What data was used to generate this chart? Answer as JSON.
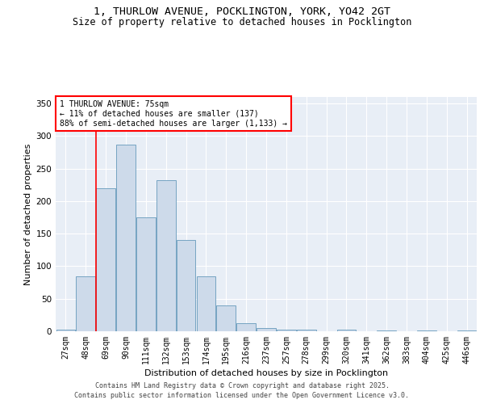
{
  "title_line1": "1, THURLOW AVENUE, POCKLINGTON, YORK, YO42 2GT",
  "title_line2": "Size of property relative to detached houses in Pocklington",
  "xlabel": "Distribution of detached houses by size in Pocklington",
  "ylabel": "Number of detached properties",
  "bar_color": "#cddaea",
  "bar_edge_color": "#6699bb",
  "background_color": "#e8eef6",
  "categories": [
    "27sqm",
    "48sqm",
    "69sqm",
    "90sqm",
    "111sqm",
    "132sqm",
    "153sqm",
    "174sqm",
    "195sqm",
    "216sqm",
    "237sqm",
    "257sqm",
    "278sqm",
    "299sqm",
    "320sqm",
    "341sqm",
    "362sqm",
    "383sqm",
    "404sqm",
    "425sqm",
    "446sqm"
  ],
  "values": [
    2,
    85,
    220,
    287,
    175,
    232,
    140,
    85,
    40,
    12,
    5,
    3,
    2,
    0,
    2,
    0,
    1,
    0,
    1,
    0,
    1
  ],
  "ylim": [
    0,
    360
  ],
  "yticks": [
    0,
    50,
    100,
    150,
    200,
    250,
    300,
    350
  ],
  "property_line_x": 1.5,
  "annotation_text": "1 THURLOW AVENUE: 75sqm\n← 11% of detached houses are smaller (137)\n88% of semi-detached houses are larger (1,133) →",
  "footer_line1": "Contains HM Land Registry data © Crown copyright and database right 2025.",
  "footer_line2": "Contains public sector information licensed under the Open Government Licence v3.0.",
  "title_fontsize": 9.5,
  "subtitle_fontsize": 8.5,
  "axis_label_fontsize": 8,
  "tick_fontsize": 7,
  "annotation_fontsize": 7,
  "footer_fontsize": 6
}
